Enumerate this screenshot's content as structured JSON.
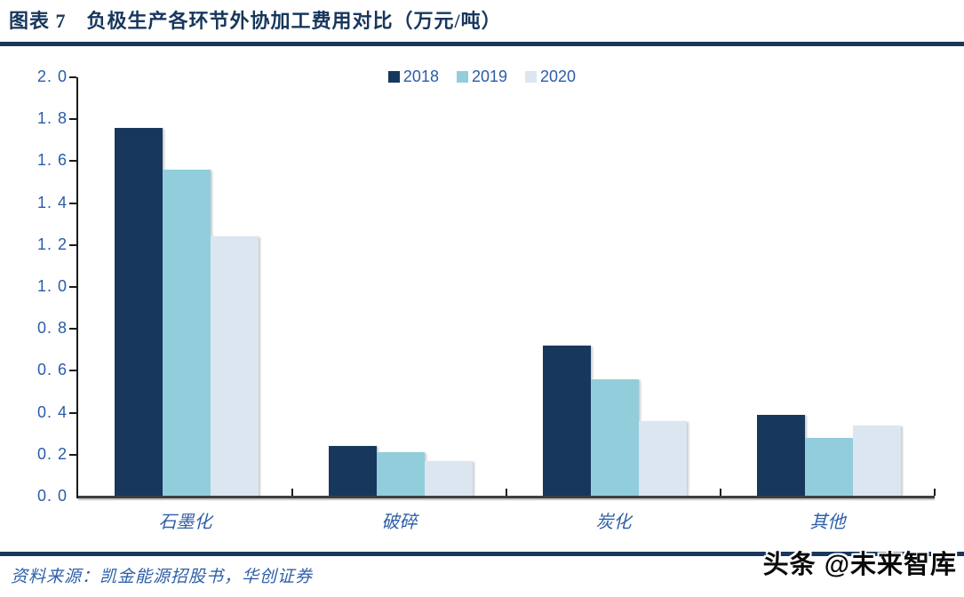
{
  "header": {
    "title": "图表 7　负极生产各环节外协加工费用对比（万元/吨）"
  },
  "footer": {
    "source_label": "资料来源：凯金能源招股书，华创证券",
    "watermark": "头条 @未来智库"
  },
  "colors": {
    "accent_navy": "#17375D",
    "series_2018": "#17375D",
    "series_2019": "#92CDDC",
    "series_2020": "#DCE6F1",
    "axis_text_blue": "#2A5CAA",
    "category_text_blue": "#2E5FA8"
  },
  "chart_data": {
    "type": "bar",
    "title": "负极生产各环节外协加工费用对比（万元/吨）",
    "xlabel": "",
    "ylabel": "",
    "categories": [
      "石墨化",
      "破碎",
      "炭化",
      "其他"
    ],
    "series": [
      {
        "name": "2018",
        "color": "#17375D",
        "values": [
          1.76,
          0.24,
          0.72,
          0.39
        ]
      },
      {
        "name": "2019",
        "color": "#92CDDC",
        "values": [
          1.56,
          0.21,
          0.56,
          0.28
        ]
      },
      {
        "name": "2020",
        "color": "#DCE6F1",
        "values": [
          1.24,
          0.17,
          0.36,
          0.34
        ]
      }
    ],
    "ylim": [
      0.0,
      2.0
    ],
    "ytick_step": 0.2,
    "ytick_labels": [
      "0. 0",
      "0. 2",
      "0. 4",
      "0. 6",
      "0. 8",
      "1. 0",
      "1. 2",
      "1. 4",
      "1. 6",
      "1. 8",
      "2. 0"
    ],
    "grid": false,
    "legend_position": "top-center"
  }
}
